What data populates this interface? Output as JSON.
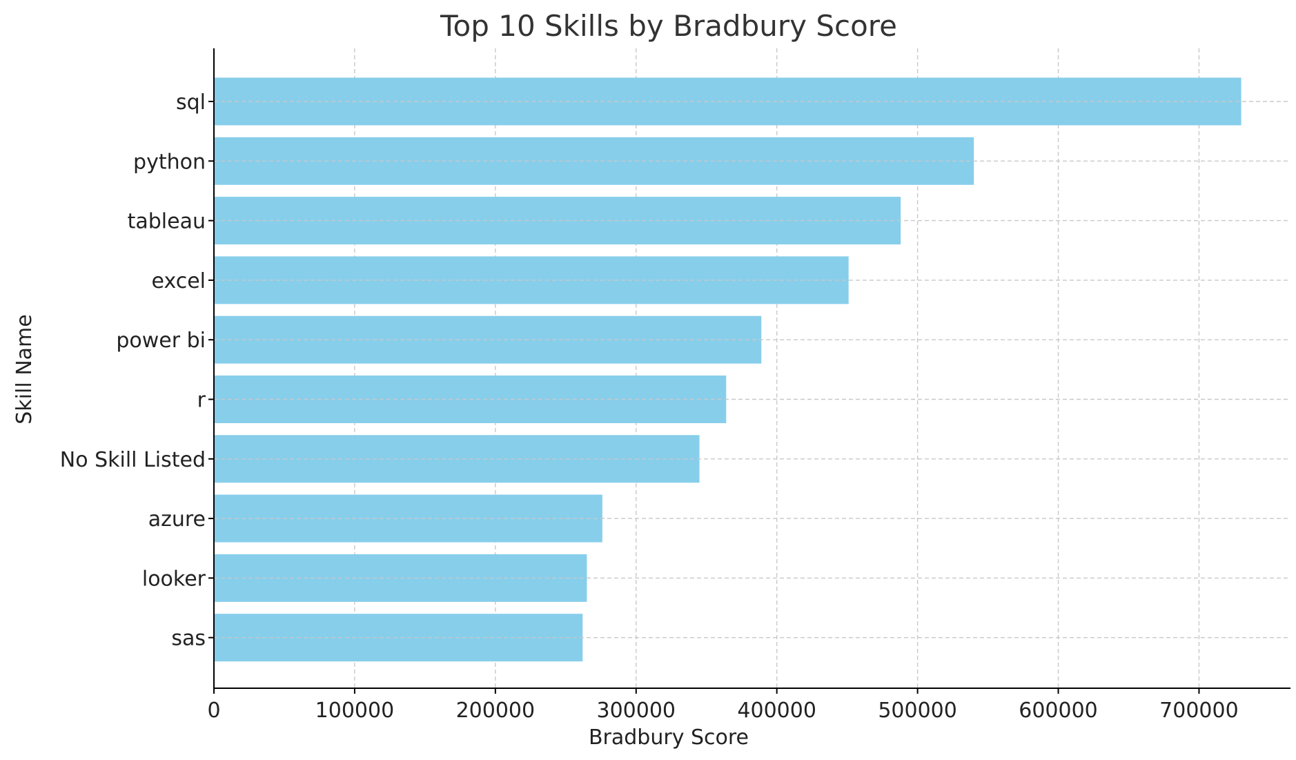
{
  "chart_data": {
    "type": "bar",
    "orientation": "horizontal",
    "title": "Top 10 Skills by Bradbury Score",
    "xlabel": "Bradbury Score",
    "ylabel": "Skill Name",
    "categories": [
      "sql",
      "python",
      "tableau",
      "excel",
      "power bi",
      "r",
      "No Skill Listed",
      "azure",
      "looker",
      "sas"
    ],
    "values": [
      730000,
      540000,
      488000,
      451000,
      389000,
      364000,
      345000,
      276000,
      265000,
      262000
    ],
    "xlim": [
      0,
      765000
    ],
    "xticks": [
      0,
      100000,
      200000,
      300000,
      400000,
      500000,
      600000,
      700000
    ],
    "grid": true,
    "bar_color": "#87ceeb"
  }
}
